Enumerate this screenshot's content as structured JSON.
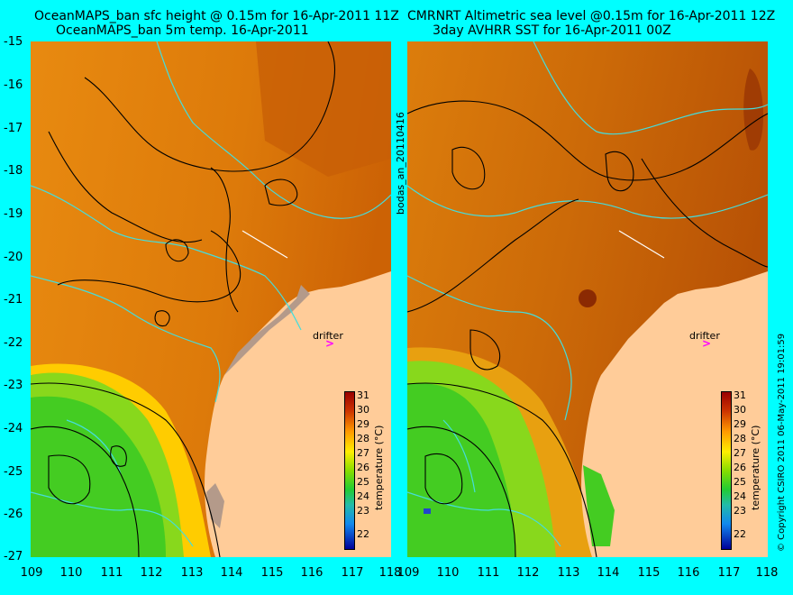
{
  "left_title_line1": "OceanMAPS_ban sfc height @ 0.15m for 16-Apr-2011 11Z",
  "left_title_line2": "OceanMAPS_ban 5m temp. 16-Apr-2011",
  "right_title_line1": "CMRNRT Altimetric sea level  @0.15m  for 16-Apr-2011 12Z",
  "right_title_line2": "3day AVHRR SST for 16-Apr-2011 00Z",
  "center_label": "bodas_an_20110416",
  "copyright": "© Copyright CSIRO 2011   06-May-2011 19:01:59",
  "drifter_label": "drifter",
  "drifter_symbol": ">",
  "colorbar_label": "temperature (°C)",
  "colorbar_ticks": [
    "31",
    "30",
    "29",
    "28",
    "27",
    "26",
    "25",
    "24",
    "23",
    "22"
  ],
  "lat_labels": [
    "-15",
    "-16",
    "-17",
    "-18",
    "-19",
    "-20",
    "-21",
    "-22",
    "-23",
    "-24",
    "-25",
    "-26",
    "-27"
  ],
  "lon_labels": [
    "109",
    "110",
    "111",
    "112",
    "113",
    "114",
    "115",
    "116",
    "117",
    "118"
  ],
  "lon_labels_right": [
    "109",
    "110",
    "111",
    "112",
    "113",
    "114",
    "115",
    "116",
    "117",
    "118"
  ],
  "colors": {
    "land": "#ffcc99",
    "ocean_warm": "#d9780a",
    "ocean_cool": "#44cc22",
    "contour_cyan": "#44dddd",
    "background": "#00ffff",
    "drifter": "#ff00ff"
  }
}
